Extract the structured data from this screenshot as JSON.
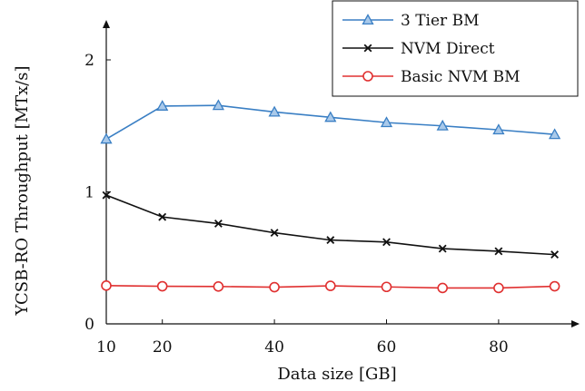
{
  "chart_data": {
    "type": "line",
    "xlabel": "Data size [GB]",
    "ylabel": "YCSB-RO Throughput [MTx/s]",
    "x": [
      10,
      20,
      30,
      40,
      50,
      60,
      70,
      80,
      90
    ],
    "xticks": [
      10,
      20,
      40,
      60,
      80
    ],
    "yticks": [
      0,
      1,
      2
    ],
    "xlim": [
      10,
      98
    ],
    "ylim": [
      0,
      2.3
    ],
    "grid": false,
    "legend_position": "top-right",
    "series": [
      {
        "name": "3 Tier BM",
        "marker": "triangle",
        "color": "#3a7fc4",
        "values": [
          1.4,
          1.65,
          1.655,
          1.605,
          1.565,
          1.525,
          1.5,
          1.47,
          1.435
        ]
      },
      {
        "name": "NVM Direct",
        "marker": "cross",
        "color": "#111111",
        "values": [
          0.975,
          0.81,
          0.76,
          0.69,
          0.635,
          0.62,
          0.57,
          0.55,
          0.525
        ]
      },
      {
        "name": "Basic NVM BM",
        "marker": "circle",
        "color": "#e03030",
        "values": [
          0.29,
          0.285,
          0.283,
          0.278,
          0.288,
          0.28,
          0.272,
          0.272,
          0.285
        ]
      }
    ]
  }
}
